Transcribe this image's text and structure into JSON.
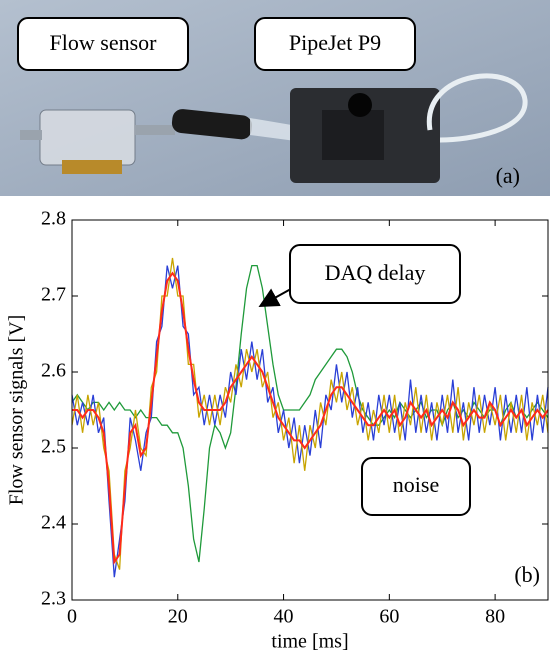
{
  "photo": {
    "labels": [
      "Flow sensor",
      "PipeJet P9"
    ],
    "panel": "(a)"
  },
  "chart_data": {
    "type": "line",
    "y_label": "Flow sensor signals [V]",
    "x_label": "time [ms]",
    "panel": "(b)",
    "annotations": [
      "DAQ delay",
      "noise"
    ],
    "xlim": [
      0,
      90
    ],
    "xticks": [
      0,
      20,
      40,
      60,
      80
    ],
    "ylim": [
      2.3,
      2.8
    ],
    "yticks": [
      2.3,
      2.4,
      2.5,
      2.6,
      2.7,
      2.8
    ],
    "x": [
      0,
      1,
      2,
      3,
      4,
      5,
      6,
      7,
      8,
      9,
      10,
      11,
      12,
      13,
      14,
      15,
      16,
      17,
      18,
      19,
      20,
      21,
      22,
      23,
      24,
      25,
      26,
      27,
      28,
      29,
      30,
      31,
      32,
      33,
      34,
      35,
      36,
      37,
      38,
      39,
      40,
      41,
      42,
      43,
      44,
      45,
      46,
      47,
      48,
      49,
      50,
      51,
      52,
      53,
      54,
      55,
      56,
      57,
      58,
      59,
      60,
      61,
      62,
      63,
      64,
      65,
      66,
      67,
      68,
      69,
      70,
      71,
      72,
      73,
      74,
      75,
      76,
      77,
      78,
      79,
      80,
      81,
      82,
      83,
      84,
      85,
      86,
      87,
      88,
      89,
      90
    ],
    "series": [
      {
        "color": "#1f9a3a",
        "values": [
          2.56,
          2.57,
          2.56,
          2.55,
          2.56,
          2.56,
          2.55,
          2.56,
          2.55,
          2.56,
          2.55,
          2.55,
          2.54,
          2.55,
          2.54,
          2.54,
          2.54,
          2.53,
          2.53,
          2.52,
          2.52,
          2.5,
          2.45,
          2.38,
          2.35,
          2.42,
          2.5,
          2.53,
          2.52,
          2.5,
          2.52,
          2.58,
          2.65,
          2.71,
          2.74,
          2.74,
          2.71,
          2.66,
          2.61,
          2.57,
          2.55,
          2.55,
          2.55,
          2.55,
          2.56,
          2.57,
          2.59,
          2.6,
          2.61,
          2.62,
          2.63,
          2.63,
          2.62,
          2.6,
          2.57,
          2.55,
          2.54,
          2.53,
          2.53,
          2.54,
          2.55,
          2.54,
          2.56,
          2.55,
          2.54,
          2.55,
          2.56,
          2.54,
          2.55,
          2.55,
          2.53,
          2.55,
          2.56,
          2.54,
          2.55,
          2.54,
          2.56,
          2.55,
          2.54,
          2.55,
          2.55,
          2.53,
          2.55,
          2.56,
          2.54,
          2.55,
          2.54,
          2.55,
          2.56,
          2.55,
          2.54
        ]
      },
      {
        "color": "#2a3fd6",
        "values": [
          2.57,
          2.53,
          2.56,
          2.53,
          2.57,
          2.52,
          2.54,
          2.43,
          2.33,
          2.38,
          2.43,
          2.54,
          2.51,
          2.47,
          2.52,
          2.54,
          2.64,
          2.66,
          2.74,
          2.71,
          2.74,
          2.66,
          2.65,
          2.57,
          2.58,
          2.53,
          2.57,
          2.53,
          2.57,
          2.54,
          2.6,
          2.57,
          2.63,
          2.59,
          2.64,
          2.59,
          2.63,
          2.56,
          2.58,
          2.52,
          2.55,
          2.5,
          2.54,
          2.48,
          2.53,
          2.49,
          2.55,
          2.5,
          2.57,
          2.55,
          2.61,
          2.56,
          2.6,
          2.54,
          2.58,
          2.52,
          2.56,
          2.51,
          2.57,
          2.53,
          2.57,
          2.52,
          2.56,
          2.51,
          2.59,
          2.52,
          2.57,
          2.52,
          2.56,
          2.51,
          2.57,
          2.52,
          2.59,
          2.52,
          2.56,
          2.51,
          2.58,
          2.52,
          2.57,
          2.53,
          2.58,
          2.51,
          2.57,
          2.52,
          2.57,
          2.52,
          2.58,
          2.51,
          2.57,
          2.52,
          2.58
        ]
      },
      {
        "color": "#c8a400",
        "values": [
          2.53,
          2.57,
          2.52,
          2.57,
          2.53,
          2.56,
          2.5,
          2.47,
          2.36,
          2.34,
          2.47,
          2.5,
          2.55,
          2.5,
          2.49,
          2.58,
          2.6,
          2.7,
          2.7,
          2.75,
          2.7,
          2.7,
          2.61,
          2.61,
          2.54,
          2.57,
          2.53,
          2.57,
          2.53,
          2.58,
          2.56,
          2.61,
          2.58,
          2.63,
          2.6,
          2.63,
          2.58,
          2.6,
          2.54,
          2.56,
          2.51,
          2.54,
          2.48,
          2.53,
          2.47,
          2.53,
          2.5,
          2.56,
          2.53,
          2.59,
          2.56,
          2.6,
          2.55,
          2.58,
          2.53,
          2.56,
          2.51,
          2.55,
          2.52,
          2.57,
          2.52,
          2.57,
          2.51,
          2.56,
          2.53,
          2.58,
          2.52,
          2.57,
          2.51,
          2.56,
          2.53,
          2.57,
          2.52,
          2.58,
          2.51,
          2.56,
          2.53,
          2.57,
          2.52,
          2.56,
          2.53,
          2.57,
          2.51,
          2.56,
          2.52,
          2.57,
          2.51,
          2.56,
          2.53,
          2.57,
          2.52
        ]
      },
      {
        "color": "#ff2a1a",
        "values": [
          2.55,
          2.55,
          2.54,
          2.55,
          2.55,
          2.54,
          2.52,
          2.45,
          2.35,
          2.36,
          2.45,
          2.52,
          2.53,
          2.49,
          2.5,
          2.56,
          2.62,
          2.68,
          2.72,
          2.73,
          2.72,
          2.68,
          2.63,
          2.59,
          2.56,
          2.55,
          2.55,
          2.55,
          2.55,
          2.56,
          2.58,
          2.59,
          2.6,
          2.61,
          2.62,
          2.61,
          2.6,
          2.58,
          2.56,
          2.54,
          2.53,
          2.52,
          2.51,
          2.51,
          2.5,
          2.51,
          2.52,
          2.53,
          2.55,
          2.57,
          2.58,
          2.58,
          2.57,
          2.56,
          2.55,
          2.54,
          2.53,
          2.53,
          2.54,
          2.55,
          2.54,
          2.55,
          2.53,
          2.54,
          2.56,
          2.55,
          2.54,
          2.55,
          2.53,
          2.54,
          2.55,
          2.54,
          2.56,
          2.55,
          2.53,
          2.54,
          2.55,
          2.54,
          2.54,
          2.56,
          2.55,
          2.53,
          2.54,
          2.55,
          2.54,
          2.55,
          2.53,
          2.54,
          2.55,
          2.54,
          2.55
        ]
      }
    ]
  }
}
